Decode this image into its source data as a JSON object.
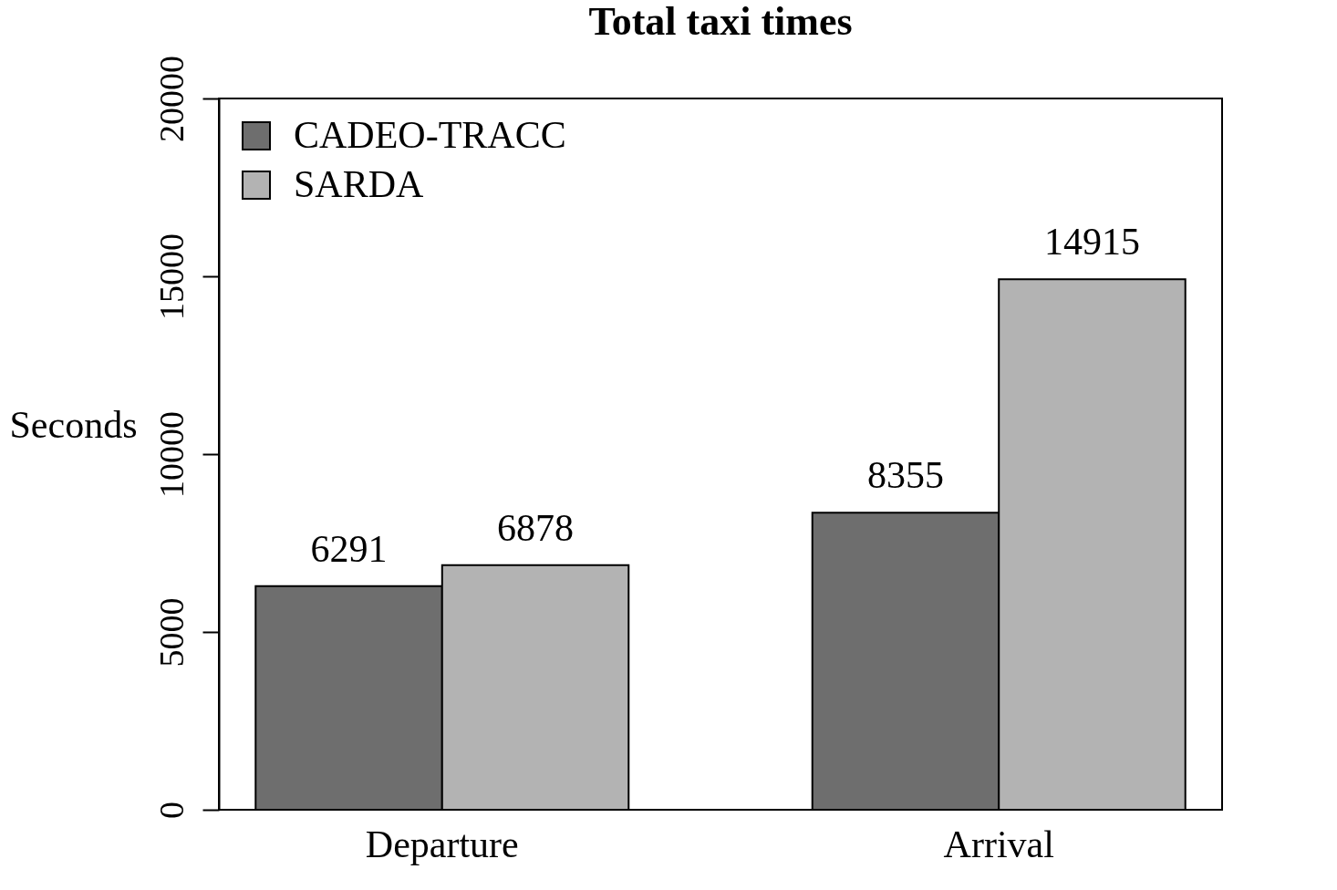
{
  "chart_data": {
    "type": "bar",
    "title": "Total taxi times",
    "ylabel": "Seconds",
    "categories": [
      "Departure",
      "Arrival"
    ],
    "series": [
      {
        "name": "CADEO-TRACC",
        "color": "#6e6e6e",
        "values": [
          6291,
          8355
        ]
      },
      {
        "name": "SARDA",
        "color": "#b3b3b3",
        "values": [
          6878,
          14915
        ]
      }
    ],
    "ylim": [
      0,
      20000
    ],
    "yticks": [
      0,
      5000,
      10000,
      15000,
      20000
    ],
    "grid": false,
    "legend": "top left",
    "data_labels": true
  }
}
